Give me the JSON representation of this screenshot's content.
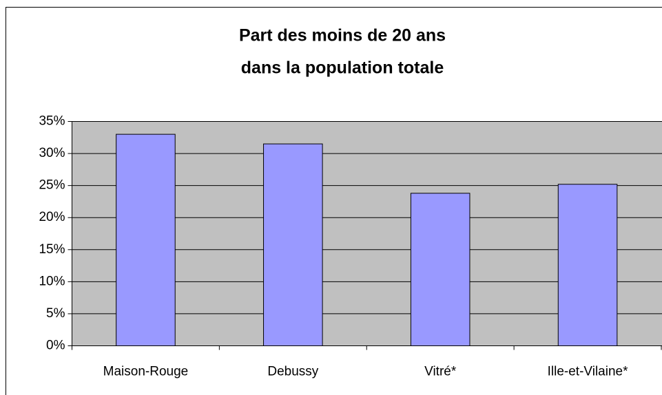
{
  "chart_data": {
    "type": "bar",
    "title": [
      "Part des moins de 20 ans",
      "dans la population totale"
    ],
    "categories": [
      "Maison-Rouge",
      "Debussy",
      "Vitré*",
      "Ille-et-Vilaine*"
    ],
    "values": [
      33,
      31.5,
      23.8,
      25.2
    ],
    "color": "#9999ff",
    "ylim": [
      0,
      35
    ],
    "yticks": [
      {
        "value": 0,
        "label": "0%"
      },
      {
        "value": 5,
        "label": "5%"
      },
      {
        "value": 10,
        "label": "10%"
      },
      {
        "value": 15,
        "label": "15%"
      },
      {
        "value": 20,
        "label": "20%"
      },
      {
        "value": 25,
        "label": "25%"
      },
      {
        "value": 30,
        "label": "30%"
      },
      {
        "value": 35,
        "label": "35%"
      }
    ],
    "grid": true
  }
}
